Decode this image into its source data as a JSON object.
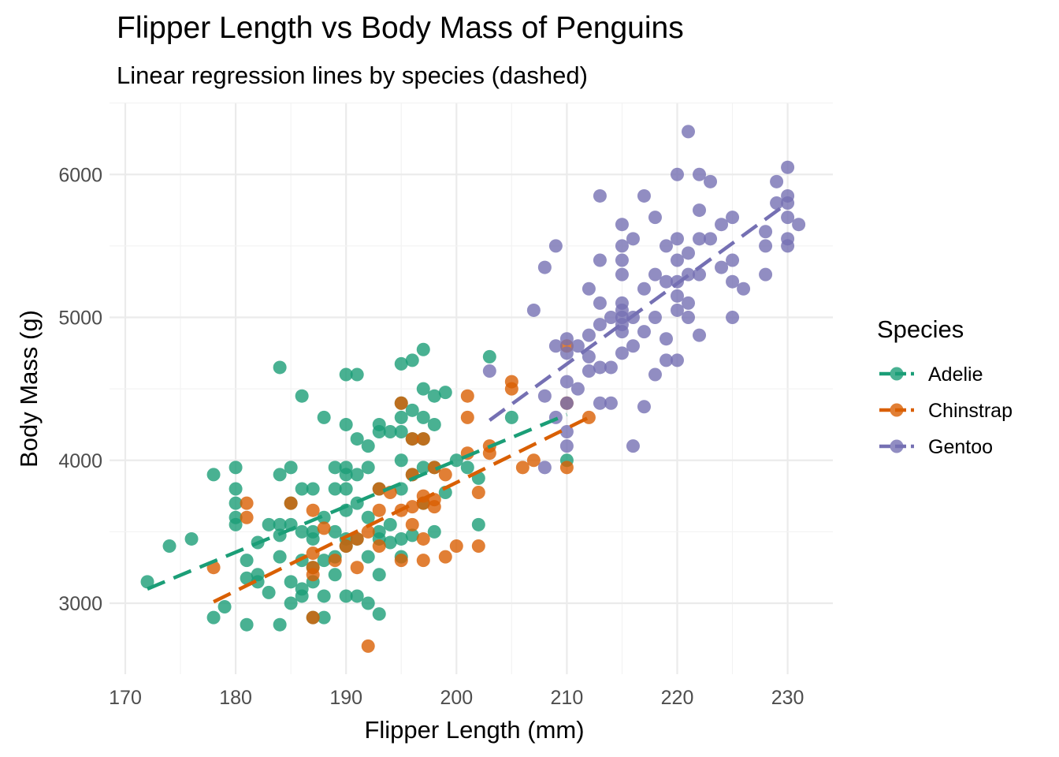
{
  "chart_data": {
    "type": "scatter",
    "title": "Flipper Length vs Body Mass of Penguins",
    "subtitle": "Linear regression lines by species (dashed)",
    "xlabel": "Flipper Length (mm)",
    "ylabel": "Body Mass (g)",
    "xlim": [
      170,
      233
    ],
    "ylim": [
      2560,
      6520
    ],
    "x_ticks": [
      170,
      180,
      190,
      200,
      210,
      220,
      230
    ],
    "y_ticks": [
      3000,
      4000,
      5000,
      6000
    ],
    "grid": true,
    "legend": {
      "title": "Species",
      "position": "right"
    },
    "series": [
      {
        "name": "Adelie",
        "color": "#1b9e77",
        "regression": {
          "x": [
            172,
            210
          ],
          "y": [
            3100,
            4320
          ]
        },
        "points": [
          [
            172,
            3150
          ],
          [
            174,
            3400
          ],
          [
            176,
            3450
          ],
          [
            178,
            3900
          ],
          [
            178,
            2900
          ],
          [
            179,
            2975
          ],
          [
            180,
            3950
          ],
          [
            180,
            3800
          ],
          [
            180,
            3700
          ],
          [
            180,
            3600
          ],
          [
            180,
            3550
          ],
          [
            181,
            3300
          ],
          [
            181,
            3175
          ],
          [
            181,
            2850
          ],
          [
            182,
            3425
          ],
          [
            182,
            3200
          ],
          [
            182,
            3150
          ],
          [
            183,
            3550
          ],
          [
            183,
            3075
          ],
          [
            184,
            4650
          ],
          [
            184,
            3900
          ],
          [
            184,
            3550
          ],
          [
            184,
            3475
          ],
          [
            184,
            3325
          ],
          [
            184,
            2850
          ],
          [
            185,
            3950
          ],
          [
            185,
            3700
          ],
          [
            185,
            3550
          ],
          [
            185,
            3150
          ],
          [
            185,
            3000
          ],
          [
            186,
            4450
          ],
          [
            186,
            3800
          ],
          [
            186,
            3500
          ],
          [
            186,
            3300
          ],
          [
            186,
            3100
          ],
          [
            186,
            3050
          ],
          [
            187,
            3800
          ],
          [
            187,
            3500
          ],
          [
            187,
            3450
          ],
          [
            187,
            3250
          ],
          [
            187,
            3150
          ],
          [
            187,
            2900
          ],
          [
            188,
            4300
          ],
          [
            188,
            3600
          ],
          [
            188,
            3300
          ],
          [
            188,
            3050
          ],
          [
            188,
            2900
          ],
          [
            189,
            3950
          ],
          [
            189,
            3800
          ],
          [
            189,
            3500
          ],
          [
            189,
            3325
          ],
          [
            189,
            3200
          ],
          [
            190,
            4600
          ],
          [
            190,
            4250
          ],
          [
            190,
            3950
          ],
          [
            190,
            3900
          ],
          [
            190,
            3800
          ],
          [
            190,
            3650
          ],
          [
            190,
            3450
          ],
          [
            190,
            3400
          ],
          [
            190,
            3050
          ],
          [
            191,
            4600
          ],
          [
            191,
            4150
          ],
          [
            191,
            3900
          ],
          [
            191,
            3700
          ],
          [
            191,
            3450
          ],
          [
            191,
            3050
          ],
          [
            192,
            4100
          ],
          [
            192,
            3950
          ],
          [
            192,
            3600
          ],
          [
            192,
            3325
          ],
          [
            192,
            3000
          ],
          [
            193,
            4250
          ],
          [
            193,
            4200
          ],
          [
            193,
            3800
          ],
          [
            193,
            3500
          ],
          [
            193,
            3450
          ],
          [
            193,
            3200
          ],
          [
            193,
            2925
          ],
          [
            194,
            4200
          ],
          [
            194,
            3550
          ],
          [
            194,
            3425
          ],
          [
            195,
            4675
          ],
          [
            195,
            4400
          ],
          [
            195,
            4300
          ],
          [
            195,
            4200
          ],
          [
            195,
            4000
          ],
          [
            195,
            3800
          ],
          [
            195,
            3450
          ],
          [
            195,
            3325
          ],
          [
            196,
            4700
          ],
          [
            196,
            4350
          ],
          [
            196,
            4150
          ],
          [
            196,
            3900
          ],
          [
            196,
            3475
          ],
          [
            197,
            4775
          ],
          [
            197,
            4500
          ],
          [
            197,
            4300
          ],
          [
            197,
            4150
          ],
          [
            197,
            3950
          ],
          [
            197,
            3700
          ],
          [
            198,
            4450
          ],
          [
            198,
            4250
          ],
          [
            198,
            3950
          ],
          [
            198,
            3500
          ],
          [
            199,
            4475
          ],
          [
            199,
            3775
          ],
          [
            200,
            4000
          ],
          [
            201,
            3950
          ],
          [
            202,
            3875
          ],
          [
            202,
            3550
          ],
          [
            203,
            4725
          ],
          [
            205,
            4300
          ],
          [
            210,
            4000
          ]
        ]
      },
      {
        "name": "Chinstrap",
        "color": "#d95f02",
        "regression": {
          "x": [
            178,
            212
          ],
          "y": [
            3010,
            4300
          ]
        },
        "points": [
          [
            178,
            3250
          ],
          [
            181,
            3700
          ],
          [
            181,
            3600
          ],
          [
            185,
            3700
          ],
          [
            187,
            3650
          ],
          [
            187,
            3350
          ],
          [
            187,
            3250
          ],
          [
            187,
            3200
          ],
          [
            187,
            2900
          ],
          [
            188,
            3525
          ],
          [
            189,
            3300
          ],
          [
            190,
            3400
          ],
          [
            191,
            3450
          ],
          [
            191,
            3250
          ],
          [
            192,
            3500
          ],
          [
            192,
            2700
          ],
          [
            193,
            3800
          ],
          [
            193,
            3650
          ],
          [
            193,
            3400
          ],
          [
            194,
            3775
          ],
          [
            195,
            4400
          ],
          [
            195,
            3650
          ],
          [
            195,
            3300
          ],
          [
            196,
            4150
          ],
          [
            196,
            3900
          ],
          [
            196,
            3675
          ],
          [
            196,
            3550
          ],
          [
            197,
            4150
          ],
          [
            197,
            3750
          ],
          [
            197,
            3700
          ],
          [
            197,
            3450
          ],
          [
            197,
            3300
          ],
          [
            198,
            3950
          ],
          [
            198,
            3725
          ],
          [
            198,
            3675
          ],
          [
            199,
            3900
          ],
          [
            199,
            3325
          ],
          [
            200,
            3400
          ],
          [
            201,
            4450
          ],
          [
            201,
            4300
          ],
          [
            201,
            4050
          ],
          [
            202,
            3400
          ],
          [
            202,
            3775
          ],
          [
            203,
            4100
          ],
          [
            203,
            4050
          ],
          [
            205,
            4550
          ],
          [
            205,
            4500
          ],
          [
            206,
            3950
          ],
          [
            207,
            4000
          ],
          [
            210,
            4800
          ],
          [
            210,
            4400
          ],
          [
            210,
            3950
          ],
          [
            212,
            4300
          ]
        ]
      },
      {
        "name": "Gentoo",
        "color": "#7570b3",
        "regression": {
          "x": [
            203,
            230
          ],
          "y": [
            4280,
            5800
          ]
        },
        "points": [
          [
            203,
            4625
          ],
          [
            207,
            5050
          ],
          [
            208,
            5350
          ],
          [
            208,
            4450
          ],
          [
            208,
            3950
          ],
          [
            209,
            5500
          ],
          [
            209,
            4800
          ],
          [
            209,
            4300
          ],
          [
            210,
            4850
          ],
          [
            210,
            4750
          ],
          [
            210,
            4550
          ],
          [
            210,
            4400
          ],
          [
            210,
            4200
          ],
          [
            210,
            4100
          ],
          [
            211,
            4800
          ],
          [
            211,
            4500
          ],
          [
            212,
            5200
          ],
          [
            212,
            4875
          ],
          [
            212,
            4725
          ],
          [
            212,
            4625
          ],
          [
            213,
            5850
          ],
          [
            213,
            5400
          ],
          [
            213,
            5100
          ],
          [
            213,
            4950
          ],
          [
            213,
            4650
          ],
          [
            213,
            4400
          ],
          [
            214,
            5000
          ],
          [
            214,
            4650
          ],
          [
            214,
            4400
          ],
          [
            215,
            5650
          ],
          [
            215,
            5500
          ],
          [
            215,
            5400
          ],
          [
            215,
            5300
          ],
          [
            215,
            5100
          ],
          [
            215,
            5050
          ],
          [
            215,
            5000
          ],
          [
            215,
            4950
          ],
          [
            215,
            4900
          ],
          [
            215,
            4750
          ],
          [
            216,
            5550
          ],
          [
            216,
            5000
          ],
          [
            216,
            4800
          ],
          [
            216,
            4100
          ],
          [
            217,
            5850
          ],
          [
            217,
            5200
          ],
          [
            217,
            4900
          ],
          [
            217,
            4375
          ],
          [
            218,
            5700
          ],
          [
            218,
            5300
          ],
          [
            218,
            5000
          ],
          [
            218,
            4600
          ],
          [
            219,
            5500
          ],
          [
            219,
            5250
          ],
          [
            219,
            4850
          ],
          [
            219,
            4700
          ],
          [
            220,
            6000
          ],
          [
            220,
            5550
          ],
          [
            220,
            5400
          ],
          [
            220,
            5250
          ],
          [
            220,
            5150
          ],
          [
            220,
            5050
          ],
          [
            220,
            4700
          ],
          [
            221,
            6300
          ],
          [
            221,
            5450
          ],
          [
            221,
            5300
          ],
          [
            221,
            5100
          ],
          [
            221,
            5000
          ],
          [
            222,
            6000
          ],
          [
            222,
            5750
          ],
          [
            222,
            5550
          ],
          [
            222,
            5300
          ],
          [
            222,
            4875
          ],
          [
            223,
            5950
          ],
          [
            223,
            5550
          ],
          [
            224,
            5650
          ],
          [
            224,
            5350
          ],
          [
            225,
            5700
          ],
          [
            225,
            5400
          ],
          [
            225,
            5250
          ],
          [
            225,
            5000
          ],
          [
            226,
            5200
          ],
          [
            228,
            5600
          ],
          [
            228,
            5500
          ],
          [
            228,
            5300
          ],
          [
            229,
            5950
          ],
          [
            229,
            5800
          ],
          [
            230,
            6050
          ],
          [
            230,
            5850
          ],
          [
            230,
            5800
          ],
          [
            230,
            5700
          ],
          [
            230,
            5550
          ],
          [
            230,
            5500
          ],
          [
            231,
            5650
          ]
        ]
      }
    ]
  }
}
